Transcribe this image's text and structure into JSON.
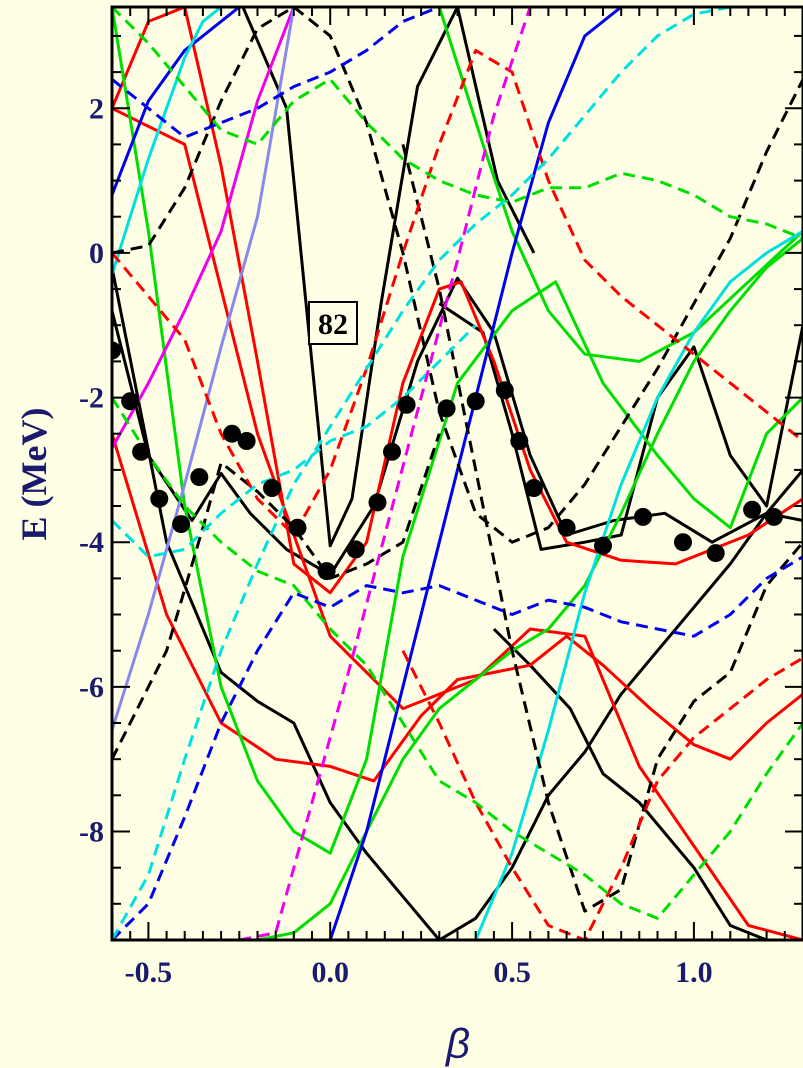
{
  "chart_data": {
    "type": "line",
    "title": "",
    "xlabel": "β",
    "ylabel": "E (MeV)",
    "xlim": [
      -0.6,
      1.3
    ],
    "ylim": [
      -9.5,
      3.4
    ],
    "xticks": [
      -0.5,
      0.0,
      0.5,
      1.0
    ],
    "xtick_labels": [
      "-0.5",
      "0.0",
      "0.5",
      "1.0"
    ],
    "yticks": [
      2,
      0,
      -2,
      -4,
      -6,
      -8
    ],
    "ytick_labels": [
      "2",
      "0",
      "-2",
      "-4",
      "-6",
      "-8"
    ],
    "grid": false,
    "annotation": "82",
    "points_series": {
      "name": "",
      "x": [
        -0.6,
        -0.55,
        -0.52,
        -0.47,
        -0.41,
        -0.36,
        -0.27,
        -0.23,
        -0.16,
        -0.09,
        -0.01,
        0.07,
        0.13,
        0.17,
        0.21,
        0.32,
        0.4,
        0.48,
        0.52,
        0.56,
        0.65,
        0.75,
        0.86,
        0.97,
        1.06,
        1.16,
        1.22
      ],
      "y": [
        -1.35,
        -2.05,
        -2.75,
        -3.4,
        -3.75,
        -3.1,
        -2.5,
        -2.6,
        -3.25,
        -3.8,
        -4.4,
        -4.1,
        -3.45,
        -2.75,
        -2.1,
        -2.15,
        -2.05,
        -1.9,
        -2.6,
        -3.25,
        -3.8,
        -4.05,
        -3.65,
        -4.0,
        -4.15,
        -3.55,
        -3.65
      ]
    },
    "series": [
      {
        "color": "#000000",
        "dash": false,
        "x": [
          -0.6,
          -0.5,
          -0.38,
          -0.3,
          -0.22,
          -0.12,
          0.0,
          0.12,
          0.24,
          0.35,
          0.45,
          0.55,
          0.65,
          0.78,
          0.92,
          1.05,
          1.2,
          1.3
        ],
        "y": [
          -0.8,
          -2.8,
          -3.7,
          -3.05,
          -3.6,
          -4.1,
          -4.45,
          -3.5,
          -1.5,
          -0.35,
          -1.1,
          -2.8,
          -3.9,
          -3.7,
          -3.6,
          -4.0,
          -3.6,
          -3.7
        ]
      },
      {
        "color": "#000000",
        "dash": false,
        "x": [
          -0.24,
          -0.12,
          0.0,
          0.06,
          0.14,
          0.24,
          0.35,
          0.46,
          0.56
        ],
        "y": [
          3.4,
          2.0,
          -4.05,
          -3.4,
          -0.7,
          2.3,
          3.4,
          1.0,
          0.0
        ]
      },
      {
        "color": "#000000",
        "dash": false,
        "x": [
          0.3,
          0.42,
          0.5,
          0.58,
          0.7,
          0.8,
          0.9,
          1.0,
          1.1,
          1.2,
          1.3
        ],
        "y": [
          -0.7,
          -1.1,
          -2.5,
          -4.1,
          -4.0,
          -3.9,
          -2.0,
          -1.3,
          -2.8,
          -3.5,
          -1.0
        ]
      },
      {
        "color": "#000000",
        "dash": false,
        "x": [
          -0.6,
          -0.45,
          -0.3,
          -0.2,
          -0.1,
          0.0,
          0.1,
          0.2,
          0.3,
          0.4,
          0.5,
          0.6,
          0.7,
          0.8,
          0.9,
          1.0,
          1.1,
          1.2,
          1.3
        ],
        "y": [
          -0.2,
          -4.0,
          -5.8,
          -6.2,
          -6.5,
          -7.6,
          -8.3,
          -8.9,
          -9.5,
          -9.2,
          -8.5,
          -7.5,
          -6.9,
          -6.1,
          -5.5,
          -4.9,
          -4.3,
          -3.6,
          -3.0
        ]
      },
      {
        "color": "#000000",
        "dash": false,
        "x": [
          0.45,
          0.55,
          0.66,
          0.75,
          0.85,
          1.0,
          1.1,
          1.2,
          1.3
        ],
        "y": [
          -5.2,
          -5.7,
          -6.3,
          -7.2,
          -7.6,
          -8.5,
          -9.3,
          -9.5,
          -9.5
        ]
      },
      {
        "color": "#ff0000",
        "dash": false,
        "x": [
          -0.6,
          -0.5,
          -0.4,
          -0.3,
          -0.2,
          -0.1,
          0.0,
          0.1,
          0.2,
          0.3,
          0.36,
          0.45,
          0.55,
          0.65,
          0.8,
          0.95,
          1.05,
          1.15,
          1.3
        ],
        "y": [
          2.0,
          3.2,
          3.4,
          1.2,
          -1.5,
          -4.3,
          -4.7,
          -4.0,
          -1.8,
          -0.5,
          -0.4,
          -1.5,
          -3.0,
          -4.0,
          -4.25,
          -4.3,
          -4.1,
          -3.9,
          -3.4
        ]
      },
      {
        "color": "#ff0000",
        "dash": false,
        "x": [
          -0.6,
          -0.45,
          -0.3,
          -0.15,
          0.0,
          0.12,
          0.25,
          0.35,
          0.45,
          0.55,
          0.65,
          0.75,
          0.88,
          1.0,
          1.1,
          1.2,
          1.3
        ],
        "y": [
          -2.5,
          -5.0,
          -6.5,
          -7.0,
          -7.1,
          -7.3,
          -6.4,
          -5.9,
          -5.8,
          -5.7,
          -5.3,
          -5.7,
          -6.3,
          -6.8,
          -7.0,
          -6.5,
          -6.1
        ]
      },
      {
        "color": "#ff0000",
        "dash": false,
        "x": [
          -0.6,
          -0.4,
          -0.2,
          0.0,
          0.2,
          0.4,
          0.55,
          0.7,
          0.85,
          1.0,
          1.15,
          1.3
        ],
        "y": [
          2.0,
          1.5,
          -2.5,
          -5.3,
          -6.3,
          -5.9,
          -5.2,
          -5.3,
          -7.1,
          -8.2,
          -9.3,
          -9.5
        ]
      },
      {
        "color": "#00dd00",
        "dash": false,
        "x": [
          -0.6,
          -0.5,
          -0.4,
          -0.3,
          -0.2,
          -0.1,
          0.0,
          0.1,
          0.2,
          0.35,
          0.5,
          0.62,
          0.75,
          0.9,
          1.0,
          1.1,
          1.2,
          1.3
        ],
        "y": [
          3.4,
          0.3,
          -3.5,
          -6.0,
          -7.3,
          -8.0,
          -8.3,
          -7.0,
          -4.2,
          -1.8,
          -0.8,
          -0.4,
          -1.8,
          -2.8,
          -3.4,
          -3.8,
          -2.5,
          -2.0
        ]
      },
      {
        "color": "#00dd00",
        "dash": false,
        "x": [
          -0.2,
          -0.1,
          0.0,
          0.1,
          0.2,
          0.3,
          0.4,
          0.5,
          0.6,
          0.7,
          0.8,
          0.9,
          1.0,
          1.1,
          1.2,
          1.3
        ],
        "y": [
          -9.5,
          -9.4,
          -9.0,
          -8.0,
          -7.0,
          -6.3,
          -5.9,
          -5.5,
          -5.2,
          -4.6,
          -3.6,
          -2.5,
          -1.5,
          -0.8,
          -0.2,
          0.2
        ]
      },
      {
        "color": "#00dd00",
        "dash": false,
        "x": [
          0.3,
          0.42,
          0.5,
          0.6,
          0.7,
          0.85,
          1.0,
          1.15,
          1.3
        ],
        "y": [
          3.4,
          1.5,
          0.3,
          -0.8,
          -1.4,
          -1.5,
          -1.1,
          -0.4,
          0.3
        ]
      },
      {
        "color": "#0000ee",
        "dash": false,
        "x": [
          -0.6,
          -0.5,
          -0.4,
          -0.25,
          -0.15
        ],
        "y": [
          0.8,
          2.1,
          2.8,
          3.4,
          3.4
        ]
      },
      {
        "color": "#0000ee",
        "dash": false,
        "x": [
          0.0,
          0.1,
          0.2,
          0.3,
          0.4,
          0.5,
          0.6,
          0.7,
          0.8
        ],
        "y": [
          -9.5,
          -8.0,
          -6.0,
          -4.0,
          -2.0,
          0.0,
          1.8,
          3.0,
          3.4
        ]
      },
      {
        "color": "#00e0e0",
        "dash": false,
        "x": [
          0.4,
          0.5,
          0.6,
          0.7,
          0.8,
          0.9,
          1.0,
          1.1,
          1.2,
          1.3
        ],
        "y": [
          -9.5,
          -8.3,
          -6.6,
          -4.7,
          -3.2,
          -2.0,
          -1.1,
          -0.4,
          0.0,
          0.3
        ]
      },
      {
        "color": "#00e0e0",
        "dash": false,
        "x": [
          -0.6,
          -0.5,
          -0.4,
          -0.35,
          -0.3
        ],
        "y": [
          -0.3,
          1.3,
          2.7,
          3.2,
          3.4
        ]
      },
      {
        "color": "#ee00ee",
        "dash": false,
        "x": [
          -0.6,
          -0.5,
          -0.4,
          -0.3,
          -0.2,
          -0.1
        ],
        "y": [
          -2.7,
          -1.8,
          -0.8,
          0.3,
          2.1,
          3.4
        ]
      },
      {
        "color": "#8888ee",
        "dash": false,
        "x": [
          -0.6,
          -0.5,
          -0.4,
          -0.3,
          -0.2,
          -0.1
        ],
        "y": [
          -6.6,
          -5.0,
          -3.2,
          -1.3,
          0.5,
          3.4
        ]
      },
      {
        "color": "#000000",
        "dash": true,
        "x": [
          -0.6,
          -0.5,
          -0.4,
          -0.3,
          -0.2,
          -0.1,
          0.0,
          0.1,
          0.2,
          0.3,
          0.4,
          0.5,
          0.6,
          0.7,
          0.8,
          0.9,
          1.0,
          1.1,
          1.2,
          1.3
        ],
        "y": [
          0.0,
          0.1,
          0.9,
          2.1,
          3.1,
          3.4,
          3.0,
          1.8,
          0.0,
          -2.2,
          -3.6,
          -4.0,
          -3.8,
          -3.2,
          -2.4,
          -1.6,
          -0.7,
          0.2,
          1.4,
          2.4
        ]
      },
      {
        "color": "#000000",
        "dash": true,
        "x": [
          -0.6,
          -0.45,
          -0.35,
          -0.3,
          -0.2,
          -0.1,
          0.0,
          0.1,
          0.2,
          0.3
        ],
        "y": [
          -7.0,
          -5.5,
          -3.8,
          -2.9,
          -3.3,
          -3.8,
          -4.5,
          -4.3,
          -4.0,
          -2.5
        ]
      },
      {
        "color": "#000000",
        "dash": true,
        "x": [
          0.2,
          0.3,
          0.4,
          0.5,
          0.6,
          0.7,
          0.8,
          0.9,
          1.0,
          1.1,
          1.2,
          1.3
        ],
        "y": [
          1.5,
          -0.5,
          -3.0,
          -5.5,
          -7.6,
          -9.1,
          -8.8,
          -7.0,
          -6.2,
          -5.8,
          -4.6,
          -4.0
        ]
      },
      {
        "color": "#ff0000",
        "dash": true,
        "x": [
          -0.6,
          -0.5,
          -0.4,
          -0.3,
          -0.2,
          -0.1,
          0.0,
          0.1,
          0.2,
          0.3,
          0.4,
          0.5,
          0.6,
          0.7,
          0.8,
          0.9,
          1.0,
          1.1,
          1.2,
          1.3
        ],
        "y": [
          0.0,
          -0.6,
          -1.2,
          -2.5,
          -3.4,
          -3.9,
          -3.0,
          -1.6,
          0.0,
          1.5,
          2.8,
          2.5,
          1.0,
          -0.1,
          -0.6,
          -1.0,
          -1.4,
          -1.8,
          -2.2,
          -2.6
        ]
      },
      {
        "color": "#ff0000",
        "dash": true,
        "x": [
          0.2,
          0.3,
          0.4,
          0.5,
          0.6,
          0.7,
          0.8,
          0.9,
          1.0,
          1.1,
          1.2,
          1.3
        ],
        "y": [
          -5.5,
          -6.5,
          -7.6,
          -8.5,
          -9.3,
          -9.5,
          -8.5,
          -7.3,
          -6.7,
          -6.3,
          -5.9,
          -5.6
        ]
      },
      {
        "color": "#00dd00",
        "dash": true,
        "x": [
          -0.6,
          -0.5,
          -0.4,
          -0.3,
          -0.2,
          -0.1,
          0.0,
          0.1,
          0.2,
          0.3,
          0.4,
          0.5,
          0.6,
          0.7,
          0.8,
          0.9,
          1.0,
          1.1,
          1.2,
          1.3
        ],
        "y": [
          -2.0,
          -2.8,
          -3.5,
          -4.0,
          -4.4,
          -4.6,
          -5.2,
          -5.7,
          -6.5,
          -7.3,
          -7.6,
          -8.0,
          -8.3,
          -8.6,
          -9.0,
          -9.2,
          -8.6,
          -8.0,
          -7.2,
          -6.5
        ]
      },
      {
        "color": "#00dd00",
        "dash": true,
        "x": [
          -0.6,
          -0.5,
          -0.4,
          -0.3,
          -0.2,
          -0.1,
          0.0,
          0.1,
          0.2,
          0.3,
          0.4,
          0.5,
          0.6,
          0.7,
          0.8,
          0.9,
          1.0,
          1.1,
          1.2,
          1.3
        ],
        "y": [
          3.4,
          2.9,
          2.3,
          1.7,
          1.5,
          2.1,
          2.4,
          1.8,
          1.3,
          1.0,
          0.8,
          0.7,
          0.9,
          0.9,
          1.1,
          1.0,
          0.8,
          0.5,
          0.4,
          0.2
        ]
      },
      {
        "color": "#0000ee",
        "dash": true,
        "x": [
          -0.6,
          -0.5,
          -0.4,
          -0.3,
          -0.2,
          -0.1,
          0.0,
          0.1,
          0.2,
          0.3,
          0.4,
          0.5,
          0.6,
          0.7,
          0.8,
          0.9,
          1.0,
          1.1,
          1.2,
          1.3
        ],
        "y": [
          -9.5,
          -9.0,
          -7.8,
          -6.5,
          -5.5,
          -4.7,
          -4.9,
          -4.6,
          -4.7,
          -4.6,
          -4.8,
          -5.0,
          -4.8,
          -4.9,
          -5.1,
          -5.2,
          -5.3,
          -5.0,
          -4.5,
          -4.2
        ]
      },
      {
        "color": "#0000ee",
        "dash": true,
        "x": [
          -0.6,
          -0.5,
          -0.4,
          -0.3,
          -0.2,
          -0.1,
          0.0,
          0.1,
          0.2,
          0.3
        ],
        "y": [
          2.4,
          2.0,
          1.6,
          1.8,
          2.0,
          2.3,
          2.5,
          2.8,
          3.2,
          3.4
        ]
      },
      {
        "color": "#00e0e0",
        "dash": true,
        "x": [
          -0.6,
          -0.5,
          -0.4,
          -0.3,
          -0.2,
          -0.1,
          0.0,
          0.1,
          0.2,
          0.3,
          0.4,
          0.5,
          0.6,
          0.7,
          0.8,
          0.9,
          1.0,
          1.1
        ],
        "y": [
          -9.5,
          -8.6,
          -7.0,
          -5.5,
          -4.3,
          -3.2,
          -2.4,
          -1.6,
          -0.8,
          -0.1,
          0.4,
          0.8,
          1.3,
          1.9,
          2.5,
          3.0,
          3.3,
          3.4
        ]
      },
      {
        "color": "#00e0e0",
        "dash": true,
        "x": [
          -0.6,
          -0.5,
          -0.4,
          -0.3,
          -0.2,
          -0.1,
          0.0,
          0.1,
          0.2,
          0.3,
          0.4
        ],
        "y": [
          -3.7,
          -4.2,
          -4.1,
          -3.6,
          -3.2,
          -3.0,
          -2.6,
          -2.4,
          -2.0,
          -1.5,
          -1.0
        ]
      },
      {
        "color": "#ee00ee",
        "dash": true,
        "x": [
          -0.25,
          -0.15,
          -0.05,
          0.05,
          0.15,
          0.25,
          0.35,
          0.45,
          0.55
        ],
        "y": [
          -9.5,
          -9.4,
          -7.6,
          -5.8,
          -3.9,
          -2.0,
          -0.1,
          1.9,
          3.4
        ]
      }
    ]
  }
}
